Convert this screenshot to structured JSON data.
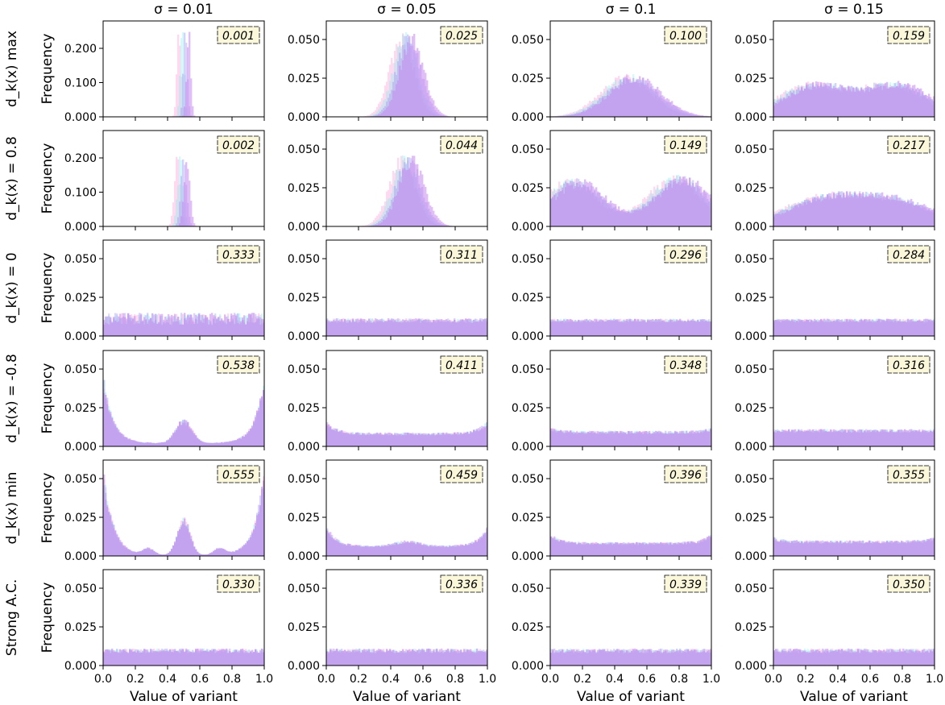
{
  "chart_data": {
    "type": "histogram-grid",
    "column_titles": [
      "σ = 0.01",
      "σ = 0.05",
      "σ = 0.1",
      "σ = 0.15"
    ],
    "row_labels": [
      "d_k(x) max",
      "d_k(x) = 0.8",
      "d_k(x) = 0",
      "d_k(x) = -0.8",
      "d_k(x) min",
      "Strong A.C."
    ],
    "ylabel": "Frequency",
    "xlabel": "Value of variant",
    "xlim": [
      0,
      1
    ],
    "x_ticks": [
      "0.0",
      "0.2",
      "0.4",
      "0.6",
      "0.8",
      "1.0"
    ],
    "series_colors": [
      "#ff9ed6",
      "#8ef0f0",
      "#9f8ff0",
      "#c88bf0"
    ],
    "panels": [
      [
        {
          "ylim": [
            0,
            0.28
          ],
          "y_ticks": [
            "0.000",
            "0.100",
            "0.200"
          ],
          "y_tick_values": [
            0,
            0.1,
            0.2
          ],
          "value": "0.001",
          "shape": {
            "type": "peaks",
            "peaks": [
              {
                "mu": 0.5,
                "sd": 0.012,
                "h": 0.25
              }
            ]
          }
        },
        {
          "ylim": [
            0,
            0.062
          ],
          "y_ticks": [
            "0.000",
            "0.025",
            "0.050"
          ],
          "y_tick_values": [
            0,
            0.025,
            0.05
          ],
          "value": "0.025",
          "shape": {
            "type": "peaks",
            "peaks": [
              {
                "mu": 0.5,
                "sd": 0.075,
                "h": 0.05
              }
            ]
          }
        },
        {
          "ylim": [
            0,
            0.062
          ],
          "y_ticks": [
            "0.000",
            "0.025",
            "0.050"
          ],
          "y_tick_values": [
            0,
            0.025,
            0.05
          ],
          "value": "0.100",
          "shape": {
            "type": "peaks",
            "peaks": [
              {
                "mu": 0.5,
                "sd": 0.16,
                "h": 0.025
              }
            ]
          }
        },
        {
          "ylim": [
            0,
            0.062
          ],
          "y_ticks": [
            "0.000",
            "0.025",
            "0.050"
          ],
          "y_tick_values": [
            0,
            0.025,
            0.05
          ],
          "value": "0.159",
          "shape": {
            "type": "twopeak",
            "peaks": [
              {
                "mu": 0.25,
                "sd": 0.2,
                "h": 0.02
              },
              {
                "mu": 0.76,
                "sd": 0.2,
                "h": 0.02
              }
            ]
          }
        }
      ],
      [
        {
          "ylim": [
            0,
            0.28
          ],
          "y_ticks": [
            "0.000",
            "0.100",
            "0.200"
          ],
          "y_tick_values": [
            0,
            0.1,
            0.2
          ],
          "value": "0.002",
          "shape": {
            "type": "peaks",
            "peaks": [
              {
                "mu": 0.49,
                "sd": 0.018,
                "h": 0.19
              }
            ]
          }
        },
        {
          "ylim": [
            0,
            0.062
          ],
          "y_ticks": [
            "0.000",
            "0.025",
            "0.050"
          ],
          "y_tick_values": [
            0,
            0.025,
            0.05
          ],
          "value": "0.044",
          "shape": {
            "type": "peaks",
            "peaks": [
              {
                "mu": 0.5,
                "sd": 0.08,
                "h": 0.042
              }
            ]
          }
        },
        {
          "ylim": [
            0,
            0.062
          ],
          "y_ticks": [
            "0.000",
            "0.025",
            "0.050"
          ],
          "y_tick_values": [
            0,
            0.025,
            0.05
          ],
          "value": "0.149",
          "shape": {
            "type": "twopeak",
            "peaks": [
              {
                "mu": 0.15,
                "sd": 0.17,
                "h": 0.028
              },
              {
                "mu": 0.8,
                "sd": 0.17,
                "h": 0.03
              }
            ]
          }
        },
        {
          "ylim": [
            0,
            0.062
          ],
          "y_ticks": [
            "0.000",
            "0.025",
            "0.050"
          ],
          "y_tick_values": [
            0,
            0.025,
            0.05
          ],
          "value": "0.217",
          "shape": {
            "type": "twopeak",
            "peaks": [
              {
                "mu": 0.3,
                "sd": 0.25,
                "h": 0.016
              },
              {
                "mu": 0.75,
                "sd": 0.25,
                "h": 0.015
              }
            ]
          }
        }
      ],
      [
        {
          "ylim": [
            0,
            0.062
          ],
          "y_ticks": [
            "0.000",
            "0.025",
            "0.050"
          ],
          "y_tick_values": [
            0,
            0.025,
            0.05
          ],
          "value": "0.333",
          "shape": {
            "type": "flat",
            "level": 0.011,
            "noise": 0.004
          }
        },
        {
          "ylim": [
            0,
            0.062
          ],
          "y_ticks": [
            "0.000",
            "0.025",
            "0.050"
          ],
          "y_tick_values": [
            0,
            0.025,
            0.05
          ],
          "value": "0.311",
          "shape": {
            "type": "flat",
            "level": 0.01,
            "noise": 0.0015
          }
        },
        {
          "ylim": [
            0,
            0.062
          ],
          "y_ticks": [
            "0.000",
            "0.025",
            "0.050"
          ],
          "y_tick_values": [
            0,
            0.025,
            0.05
          ],
          "value": "0.296",
          "shape": {
            "type": "flat",
            "level": 0.01,
            "noise": 0.0012
          }
        },
        {
          "ylim": [
            0,
            0.062
          ],
          "y_ticks": [
            "0.000",
            "0.025",
            "0.050"
          ],
          "y_tick_values": [
            0,
            0.025,
            0.05
          ],
          "value": "0.284",
          "shape": {
            "type": "flat",
            "level": 0.01,
            "noise": 0.0012
          }
        }
      ],
      [
        {
          "ylim": [
            0,
            0.062
          ],
          "y_ticks": [
            "0.000",
            "0.025",
            "0.050"
          ],
          "y_tick_values": [
            0,
            0.025,
            0.05
          ],
          "value": "0.538",
          "shape": {
            "type": "edges",
            "edge": 0.042,
            "base": 0.002,
            "peaks": [
              {
                "mu": 0.5,
                "sd": 0.05,
                "h": 0.014
              }
            ]
          }
        },
        {
          "ylim": [
            0,
            0.062
          ],
          "y_ticks": [
            "0.000",
            "0.025",
            "0.050"
          ],
          "y_tick_values": [
            0,
            0.025,
            0.05
          ],
          "value": "0.411",
          "shape": {
            "type": "edges",
            "edge": 0.015,
            "base": 0.008,
            "peaks": []
          }
        },
        {
          "ylim": [
            0,
            0.062
          ],
          "y_ticks": [
            "0.000",
            "0.025",
            "0.050"
          ],
          "y_tick_values": [
            0,
            0.025,
            0.05
          ],
          "value": "0.348",
          "shape": {
            "type": "edges",
            "edge": 0.011,
            "base": 0.009,
            "peaks": []
          }
        },
        {
          "ylim": [
            0,
            0.062
          ],
          "y_ticks": [
            "0.000",
            "0.025",
            "0.050"
          ],
          "y_tick_values": [
            0,
            0.025,
            0.05
          ],
          "value": "0.316",
          "shape": {
            "type": "flat",
            "level": 0.01,
            "noise": 0.0012
          }
        }
      ],
      [
        {
          "ylim": [
            0,
            0.062
          ],
          "y_ticks": [
            "0.000",
            "0.025",
            "0.050"
          ],
          "y_tick_values": [
            0,
            0.025,
            0.05
          ],
          "value": "0.555",
          "shape": {
            "type": "edges",
            "edge": 0.053,
            "base": 0.0005,
            "peaks": [
              {
                "mu": 0.5,
                "sd": 0.04,
                "h": 0.022
              },
              {
                "mu": 0.28,
                "sd": 0.035,
                "h": 0.004
              },
              {
                "mu": 0.72,
                "sd": 0.035,
                "h": 0.004
              }
            ]
          }
        },
        {
          "ylim": [
            0,
            0.062
          ],
          "y_ticks": [
            "0.000",
            "0.025",
            "0.050"
          ],
          "y_tick_values": [
            0,
            0.025,
            0.05
          ],
          "value": "0.459",
          "shape": {
            "type": "edges",
            "edge": 0.018,
            "base": 0.006,
            "peaks": [
              {
                "mu": 0.5,
                "sd": 0.08,
                "h": 0.003
              }
            ]
          }
        },
        {
          "ylim": [
            0,
            0.062
          ],
          "y_ticks": [
            "0.000",
            "0.025",
            "0.050"
          ],
          "y_tick_values": [
            0,
            0.025,
            0.05
          ],
          "value": "0.396",
          "shape": {
            "type": "edges",
            "edge": 0.013,
            "base": 0.008,
            "peaks": []
          }
        },
        {
          "ylim": [
            0,
            0.062
          ],
          "y_ticks": [
            "0.000",
            "0.025",
            "0.050"
          ],
          "y_tick_values": [
            0,
            0.025,
            0.05
          ],
          "value": "0.355",
          "shape": {
            "type": "edges",
            "edge": 0.011,
            "base": 0.009,
            "peaks": []
          }
        }
      ],
      [
        {
          "ylim": [
            0,
            0.062
          ],
          "y_ticks": [
            "0.000",
            "0.025",
            "0.050"
          ],
          "y_tick_values": [
            0,
            0.025,
            0.05
          ],
          "value": "0.330",
          "shape": {
            "type": "flat",
            "level": 0.0095,
            "noise": 0.0015
          }
        },
        {
          "ylim": [
            0,
            0.062
          ],
          "y_ticks": [
            "0.000",
            "0.025",
            "0.050"
          ],
          "y_tick_values": [
            0,
            0.025,
            0.05
          ],
          "value": "0.336",
          "shape": {
            "type": "flat",
            "level": 0.0095,
            "noise": 0.0015
          }
        },
        {
          "ylim": [
            0,
            0.062
          ],
          "y_ticks": [
            "0.000",
            "0.025",
            "0.050"
          ],
          "y_tick_values": [
            0,
            0.025,
            0.05
          ],
          "value": "0.339",
          "shape": {
            "type": "flat",
            "level": 0.0095,
            "noise": 0.0015
          }
        },
        {
          "ylim": [
            0,
            0.062
          ],
          "y_ticks": [
            "0.000",
            "0.025",
            "0.050"
          ],
          "y_tick_values": [
            0,
            0.025,
            0.05
          ],
          "value": "0.350",
          "shape": {
            "type": "flat",
            "level": 0.0095,
            "noise": 0.0015
          }
        }
      ]
    ]
  }
}
